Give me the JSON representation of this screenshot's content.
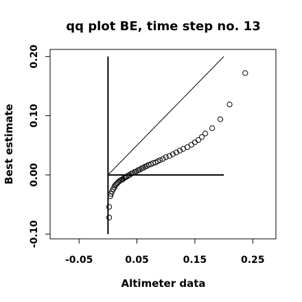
{
  "chart_data": {
    "type": "scatter",
    "title": "qq plot BE, time step no. 13",
    "xlabel": "Altimeter data",
    "ylabel": "Best estimate",
    "xlim": [
      -0.1,
      0.29
    ],
    "ylim": [
      -0.108,
      0.212
    ],
    "xticks": [
      -0.05,
      0.05,
      0.15,
      0.25
    ],
    "xtick_labels": [
      "-0.05",
      "0.05",
      "0.15",
      "0.25"
    ],
    "yticks": [
      -0.1,
      0.0,
      0.1,
      0.2
    ],
    "ytick_labels": [
      "-0.10",
      "0.00",
      "0.10",
      "0.20"
    ],
    "grid": false,
    "reference_lines": [
      {
        "kind": "vertical",
        "x": 0.0,
        "y_from": -0.1,
        "y_to": 0.2
      },
      {
        "kind": "horizontal",
        "y": 0.0,
        "x_from": 0.0,
        "x_to": 0.2
      },
      {
        "kind": "diagonal",
        "from": [
          0.0,
          0.0
        ],
        "to": [
          0.2,
          0.2
        ]
      }
    ],
    "points": [
      [
        0.002,
        -0.072
      ],
      [
        0.002,
        -0.054
      ],
      [
        0.004,
        -0.036
      ],
      [
        0.005,
        -0.032
      ],
      [
        0.007,
        -0.028
      ],
      [
        0.009,
        -0.024
      ],
      [
        0.011,
        -0.021
      ],
      [
        0.012,
        -0.018
      ],
      [
        0.014,
        -0.016
      ],
      [
        0.016,
        -0.014
      ],
      [
        0.018,
        -0.012
      ],
      [
        0.02,
        -0.01
      ],
      [
        0.022,
        -0.009
      ],
      [
        0.024,
        -0.008
      ],
      [
        0.026,
        -0.007
      ],
      [
        0.028,
        -0.005
      ],
      [
        0.03,
        -0.004
      ],
      [
        0.032,
        -0.003
      ],
      [
        0.035,
        -0.001
      ],
      [
        0.037,
        0.0
      ],
      [
        0.04,
        0.002
      ],
      [
        0.043,
        0.003
      ],
      [
        0.046,
        0.005
      ],
      [
        0.049,
        0.006
      ],
      [
        0.052,
        0.008
      ],
      [
        0.055,
        0.009
      ],
      [
        0.058,
        0.011
      ],
      [
        0.061,
        0.012
      ],
      [
        0.064,
        0.014
      ],
      [
        0.067,
        0.015
      ],
      [
        0.07,
        0.017
      ],
      [
        0.074,
        0.018
      ],
      [
        0.078,
        0.02
      ],
      [
        0.082,
        0.021
      ],
      [
        0.086,
        0.023
      ],
      [
        0.09,
        0.025
      ],
      [
        0.095,
        0.027
      ],
      [
        0.1,
        0.03
      ],
      [
        0.106,
        0.032
      ],
      [
        0.112,
        0.035
      ],
      [
        0.118,
        0.038
      ],
      [
        0.124,
        0.041
      ],
      [
        0.13,
        0.044
      ],
      [
        0.137,
        0.047
      ],
      [
        0.144,
        0.051
      ],
      [
        0.15,
        0.055
      ],
      [
        0.156,
        0.059
      ],
      [
        0.162,
        0.064
      ],
      [
        0.168,
        0.07
      ],
      [
        0.18,
        0.079
      ],
      [
        0.194,
        0.094
      ],
      [
        0.21,
        0.119
      ],
      [
        0.237,
        0.172
      ]
    ]
  }
}
